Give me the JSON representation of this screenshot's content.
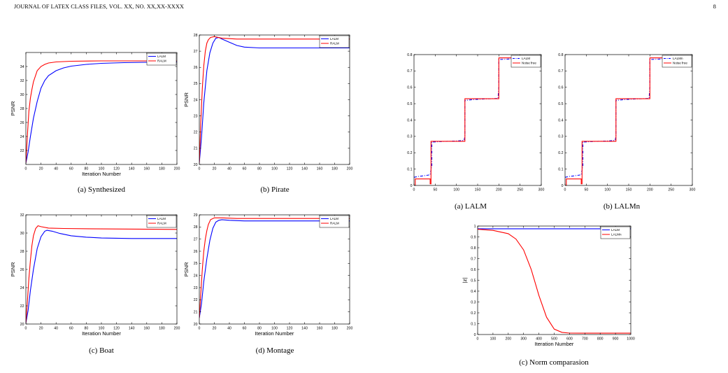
{
  "header": {
    "left": "JOURNAL OF LATEX CLASS FILES, VOL. XX, NO. XX,XX-XXXX",
    "page": "8"
  },
  "chart_data": [
    {
      "id": "synthesized",
      "type": "line",
      "caption": "(a) Synthesized",
      "xlabel": "Iteration Number",
      "ylabel": "PSNR",
      "xlim": [
        0,
        200
      ],
      "ylim": [
        20,
        36
      ],
      "xticks": [
        0,
        20,
        40,
        60,
        80,
        100,
        120,
        140,
        160,
        180,
        200
      ],
      "yticks": [
        22,
        24,
        26,
        28,
        30,
        32,
        34
      ],
      "legend": "top-right",
      "series": [
        {
          "name": "LALM",
          "color": "#0000ff",
          "style": "solid",
          "x": [
            0,
            3,
            6,
            10,
            15,
            20,
            25,
            30,
            40,
            50,
            60,
            80,
            100,
            130,
            160,
            200
          ],
          "y": [
            20.2,
            21.8,
            24.0,
            26.6,
            29.0,
            30.9,
            32.0,
            32.7,
            33.4,
            33.8,
            34.05,
            34.3,
            34.45,
            34.55,
            34.6,
            34.65
          ]
        },
        {
          "name": "RALM",
          "color": "#ff0000",
          "style": "solid",
          "x": [
            0,
            2,
            4,
            6,
            8,
            10,
            15,
            20,
            25,
            30,
            40,
            60,
            100,
            200
          ],
          "y": [
            20.2,
            24.2,
            27.6,
            29.5,
            30.7,
            31.8,
            33.4,
            34.0,
            34.3,
            34.5,
            34.65,
            34.75,
            34.8,
            34.8
          ]
        }
      ]
    },
    {
      "id": "pirate",
      "type": "line",
      "caption": "(b) Pirate",
      "xlabel": "",
      "ylabel": "PSNR",
      "xlim": [
        0,
        200
      ],
      "ylim": [
        20,
        28
      ],
      "xticks": [
        0,
        20,
        40,
        60,
        80,
        100,
        120,
        140,
        160,
        180,
        200
      ],
      "yticks": [
        20,
        21,
        22,
        23,
        24,
        25,
        26,
        27,
        28
      ],
      "legend": "top-right",
      "series": [
        {
          "name": "LALM",
          "color": "#0000ff",
          "style": "solid",
          "x": [
            0,
            3,
            6,
            10,
            14,
            18,
            22,
            26,
            30,
            40,
            50,
            60,
            80,
            100,
            140,
            200
          ],
          "y": [
            20.1,
            21.7,
            23.8,
            25.8,
            26.9,
            27.5,
            27.8,
            27.85,
            27.75,
            27.55,
            27.35,
            27.25,
            27.2,
            27.2,
            27.2,
            27.2
          ]
        },
        {
          "name": "RALM",
          "color": "#ff0000",
          "style": "solid",
          "x": [
            0,
            2,
            4,
            6,
            8,
            10,
            12,
            15,
            20,
            30,
            50,
            100,
            200
          ],
          "y": [
            20.1,
            22.6,
            24.7,
            26.1,
            27.0,
            27.5,
            27.7,
            27.85,
            27.9,
            27.8,
            27.75,
            27.75,
            27.75
          ]
        }
      ]
    },
    {
      "id": "boat",
      "type": "line",
      "caption": "(c) Boat",
      "xlabel": "Iteration Number",
      "ylabel": "PSNR",
      "xlim": [
        0,
        200
      ],
      "ylim": [
        20,
        32
      ],
      "xticks": [
        0,
        20,
        40,
        60,
        80,
        100,
        120,
        140,
        160,
        180,
        200
      ],
      "yticks": [
        20,
        22,
        24,
        26,
        28,
        30,
        32
      ],
      "legend": "top-right",
      "series": [
        {
          "name": "LALM",
          "color": "#0000ff",
          "style": "solid",
          "x": [
            0,
            3,
            6,
            10,
            15,
            20,
            25,
            28,
            35,
            45,
            60,
            80,
            100,
            140,
            200
          ],
          "y": [
            20.1,
            21.5,
            23.7,
            26.0,
            28.3,
            29.6,
            30.2,
            30.3,
            30.2,
            29.95,
            29.7,
            29.55,
            29.45,
            29.4,
            29.4
          ]
        },
        {
          "name": "RALM",
          "color": "#ff0000",
          "style": "solid",
          "x": [
            0,
            2,
            4,
            6,
            8,
            10,
            13,
            16,
            20,
            30,
            50,
            100,
            200
          ],
          "y": [
            20.1,
            22.5,
            25.0,
            27.0,
            28.6,
            29.7,
            30.5,
            30.8,
            30.7,
            30.55,
            30.5,
            30.45,
            30.4
          ]
        }
      ]
    },
    {
      "id": "montage",
      "type": "line",
      "caption": "(d) Montage",
      "xlabel": "Iteration Number",
      "ylabel": "PSNR",
      "xlim": [
        0,
        200
      ],
      "ylim": [
        20,
        29
      ],
      "xticks": [
        0,
        20,
        40,
        60,
        80,
        100,
        120,
        140,
        160,
        180,
        200
      ],
      "yticks": [
        20,
        21,
        22,
        23,
        24,
        25,
        26,
        27,
        28,
        29
      ],
      "legend": "top-right",
      "series": [
        {
          "name": "LALM",
          "color": "#0000ff",
          "style": "solid",
          "x": [
            0,
            3,
            6,
            10,
            14,
            18,
            22,
            26,
            30,
            40,
            60,
            100,
            200
          ],
          "y": [
            20.5,
            21.7,
            23.5,
            25.4,
            26.9,
            27.9,
            28.4,
            28.55,
            28.6,
            28.55,
            28.5,
            28.5,
            28.5
          ]
        },
        {
          "name": "RALM",
          "color": "#ff0000",
          "style": "solid",
          "x": [
            0,
            2,
            4,
            6,
            8,
            10,
            12,
            15,
            20,
            30,
            50,
            100,
            200
          ],
          "y": [
            20.5,
            22.5,
            24.5,
            26.0,
            27.0,
            27.7,
            28.2,
            28.6,
            28.75,
            28.75,
            28.7,
            28.7,
            28.7
          ]
        }
      ]
    },
    {
      "id": "lalm_signal",
      "type": "line",
      "caption": "(a) LALM",
      "xlabel": "",
      "ylabel": "",
      "xlim": [
        0,
        300
      ],
      "ylim": [
        0,
        0.8
      ],
      "xticks": [
        0,
        50,
        100,
        150,
        200,
        250,
        300
      ],
      "yticks": [
        0,
        0.1,
        0.2,
        0.3,
        0.4,
        0.5,
        0.6,
        0.7,
        0.8
      ],
      "legend": "top-right",
      "series": [
        {
          "name": "LALM",
          "color": "#0000ff",
          "style": "dashdot",
          "x": [
            0,
            10,
            20,
            30,
            38,
            38,
            42,
            42,
            60,
            80,
            100,
            118,
            120,
            120,
            140,
            160,
            180,
            198,
            200,
            200,
            220,
            240,
            255
          ],
          "y": [
            0.05,
            0.055,
            0.058,
            0.062,
            0.065,
            0.065,
            0.12,
            0.265,
            0.268,
            0.27,
            0.272,
            0.275,
            0.3,
            0.52,
            0.525,
            0.528,
            0.53,
            0.532,
            0.6,
            0.77,
            0.772,
            0.775,
            0.775
          ]
        },
        {
          "name": "Noise free",
          "color": "#ff0000",
          "style": "solid",
          "x": [
            0,
            3,
            3,
            38,
            38,
            40,
            40,
            120,
            120,
            200,
            200,
            255
          ],
          "y": [
            0,
            0,
            0.04,
            0.04,
            0.01,
            0.01,
            0.27,
            0.27,
            0.53,
            0.53,
            0.78,
            0.78
          ]
        }
      ]
    },
    {
      "id": "lalmn_signal",
      "type": "line",
      "caption": "(b) LALMn",
      "xlabel": "",
      "ylabel": "",
      "xlim": [
        0,
        300
      ],
      "ylim": [
        0,
        0.8
      ],
      "xticks": [
        0,
        50,
        100,
        150,
        200,
        250,
        300
      ],
      "yticks": [
        0,
        0.1,
        0.2,
        0.3,
        0.4,
        0.5,
        0.6,
        0.7,
        0.8
      ],
      "legend": "top-right",
      "series": [
        {
          "name": "LALMn",
          "color": "#0000ff",
          "style": "dashdot",
          "x": [
            0,
            10,
            20,
            30,
            38,
            38,
            42,
            42,
            60,
            80,
            100,
            118,
            120,
            120,
            140,
            160,
            180,
            198,
            200,
            200,
            220,
            240,
            255
          ],
          "y": [
            0.05,
            0.055,
            0.058,
            0.062,
            0.065,
            0.065,
            0.12,
            0.265,
            0.268,
            0.27,
            0.272,
            0.275,
            0.3,
            0.52,
            0.525,
            0.528,
            0.53,
            0.532,
            0.6,
            0.77,
            0.772,
            0.775,
            0.775
          ]
        },
        {
          "name": "Noise free",
          "color": "#ff0000",
          "style": "solid",
          "x": [
            0,
            3,
            3,
            38,
            38,
            40,
            40,
            120,
            120,
            200,
            200,
            255
          ],
          "y": [
            0,
            0,
            0.04,
            0.04,
            0.01,
            0.01,
            0.27,
            0.27,
            0.53,
            0.53,
            0.78,
            0.78
          ]
        }
      ]
    },
    {
      "id": "norm",
      "type": "line",
      "caption": "(c) Norm comparasion",
      "xlabel": "Iteration Number",
      "ylabel": "|z|",
      "xlim": [
        0,
        1000
      ],
      "ylim": [
        0,
        1
      ],
      "xticks": [
        0,
        100,
        200,
        300,
        400,
        500,
        600,
        700,
        800,
        900,
        1000
      ],
      "yticks": [
        0,
        0.1,
        0.2,
        0.3,
        0.4,
        0.5,
        0.6,
        0.7,
        0.8,
        0.9,
        1
      ],
      "legend": "top-right",
      "series": [
        {
          "name": "LALM",
          "color": "#0000ff",
          "style": "solid",
          "x": [
            0,
            1000
          ],
          "y": [
            0.975,
            0.975
          ]
        },
        {
          "name": "LALMn",
          "color": "#ff0000",
          "style": "solid",
          "x": [
            0,
            100,
            200,
            250,
            300,
            350,
            400,
            450,
            500,
            550,
            600,
            700,
            800,
            1000
          ],
          "y": [
            0.97,
            0.96,
            0.93,
            0.88,
            0.78,
            0.6,
            0.36,
            0.16,
            0.05,
            0.02,
            0.013,
            0.012,
            0.012,
            0.012
          ]
        }
      ]
    }
  ]
}
